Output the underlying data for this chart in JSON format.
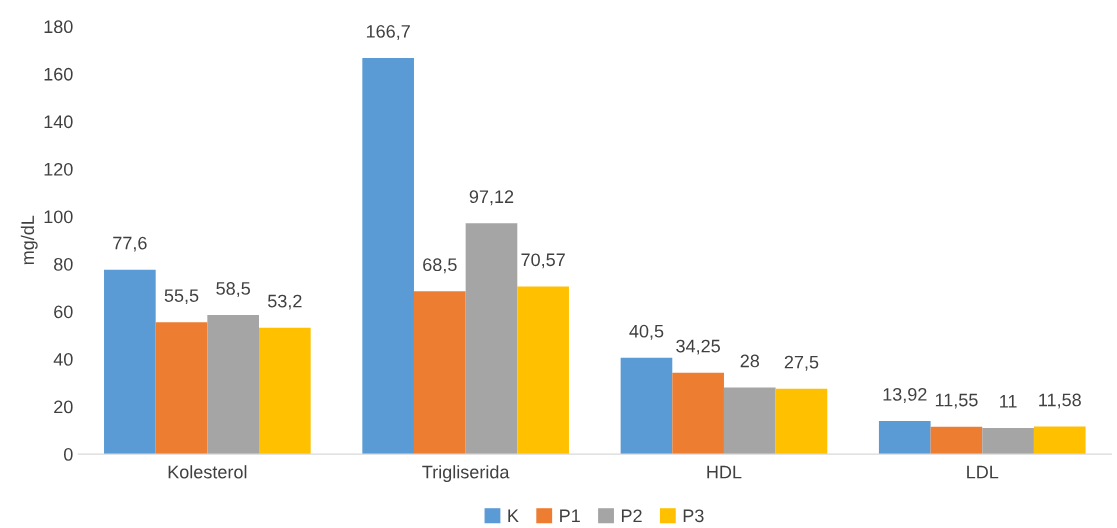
{
  "chart_data": {
    "type": "bar",
    "ylabel": "mg/dL",
    "categories": [
      "Kolesterol",
      "Trigliserida",
      "HDL",
      "LDL"
    ],
    "series": [
      {
        "name": "K",
        "color": "#5b9bd5",
        "values": [
          77.6,
          166.7,
          40.5,
          13.92
        ],
        "value_labels": [
          "77,6",
          "166,7",
          "40,5",
          "13,92"
        ]
      },
      {
        "name": "P1",
        "color": "#ed7d31",
        "values": [
          55.5,
          68.5,
          34.25,
          11.55
        ],
        "value_labels": [
          "55,5",
          "68,5",
          "34,25",
          "11,55"
        ]
      },
      {
        "name": "P2",
        "color": "#a5a5a5",
        "values": [
          58.5,
          97.12,
          28,
          11
        ],
        "value_labels": [
          "58,5",
          "97,12",
          "28",
          "11"
        ]
      },
      {
        "name": "P3",
        "color": "#ffc000",
        "values": [
          53.2,
          70.57,
          27.5,
          11.58
        ],
        "value_labels": [
          "53,2",
          "70,57",
          "27,5",
          "11,58"
        ]
      }
    ],
    "ylim": [
      0,
      180
    ],
    "yticks": [
      0,
      20,
      40,
      60,
      80,
      100,
      120,
      140,
      160,
      180
    ],
    "grid": false,
    "legend": "bottom"
  }
}
